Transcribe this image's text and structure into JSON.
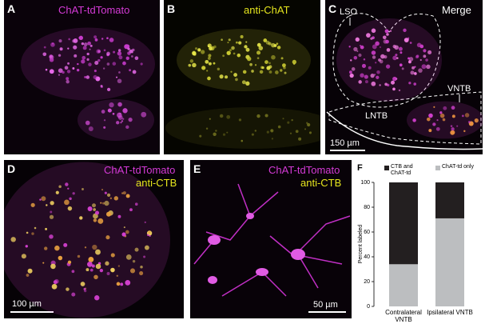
{
  "panels": [
    {
      "label": "A",
      "texts": [
        "ChAT-tdTomato"
      ]
    },
    {
      "label": "B",
      "texts": [
        "anti-ChAT"
      ]
    },
    {
      "label": "C",
      "texts": [
        "Merge",
        "LSO",
        "VNTB",
        "LNTB",
        "150 µm"
      ]
    },
    {
      "label": "D",
      "texts": [
        "ChAT-tdTomato",
        "anti-CTB",
        "100 µm"
      ]
    },
    {
      "label": "E",
      "texts": [
        "ChAT-tdTomato",
        "anti-CTB",
        "50 µm"
      ]
    }
  ],
  "chart_data": {
    "type": "bar",
    "label": "F",
    "stacked": true,
    "categories": [
      "Contralateral VNTB",
      "Ipsilateral VNTB"
    ],
    "series": [
      {
        "name": "CTB and ChAT-td",
        "color": "#231f20",
        "values": [
          66,
          29
        ]
      },
      {
        "name": "ChAT-td only",
        "color": "#bcbec0",
        "values": [
          34,
          71
        ]
      }
    ],
    "ylabel": "Percent labeled",
    "ylim": [
      0,
      100
    ],
    "yticks": [
      0,
      20,
      40,
      60,
      80,
      100
    ]
  }
}
